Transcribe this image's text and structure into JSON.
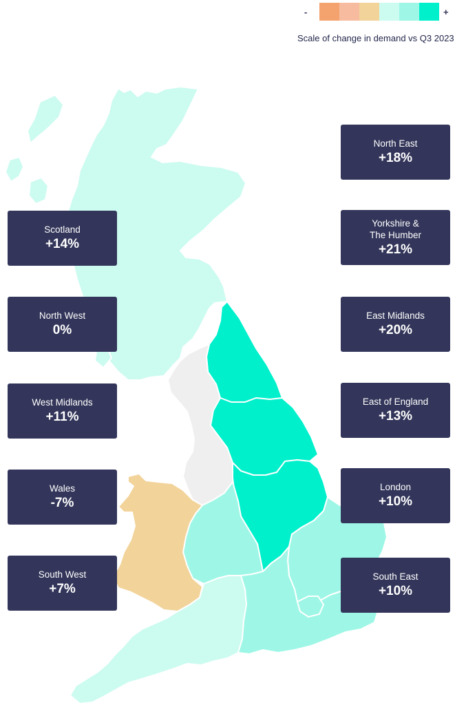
{
  "legend": {
    "minus_label": "-",
    "plus_label": "+",
    "caption": "Scale of change in demand vs Q3 2023",
    "colors": [
      "#f4a26e",
      "#f7bca0",
      "#f2d39a",
      "#ccfbf0",
      "#9ef7e6",
      "#00f0cc"
    ]
  },
  "colors": {
    "card_bg": "#33365a",
    "no_change": "#efefef"
  },
  "regions": {
    "north_east": {
      "name": "North East",
      "value": "+18%"
    },
    "yorkshire": {
      "name": "Yorkshire  &\nThe Humber",
      "value": "+21%"
    },
    "east_midlands": {
      "name": "East Midlands",
      "value": "+20%"
    },
    "east_of_england": {
      "name": "East of England",
      "value": "+13%"
    },
    "london": {
      "name": "London",
      "value": "+10%"
    },
    "south_east": {
      "name": "South East",
      "value": "+10%"
    },
    "scotland": {
      "name": "Scotland",
      "value": "+14%"
    },
    "north_west": {
      "name": "North West",
      "value": "0%"
    },
    "west_midlands": {
      "name": "West Midlands",
      "value": "+11%"
    },
    "wales": {
      "name": "Wales",
      "value": "-7%"
    },
    "south_west": {
      "name": "South West",
      "value": "+7%"
    }
  }
}
